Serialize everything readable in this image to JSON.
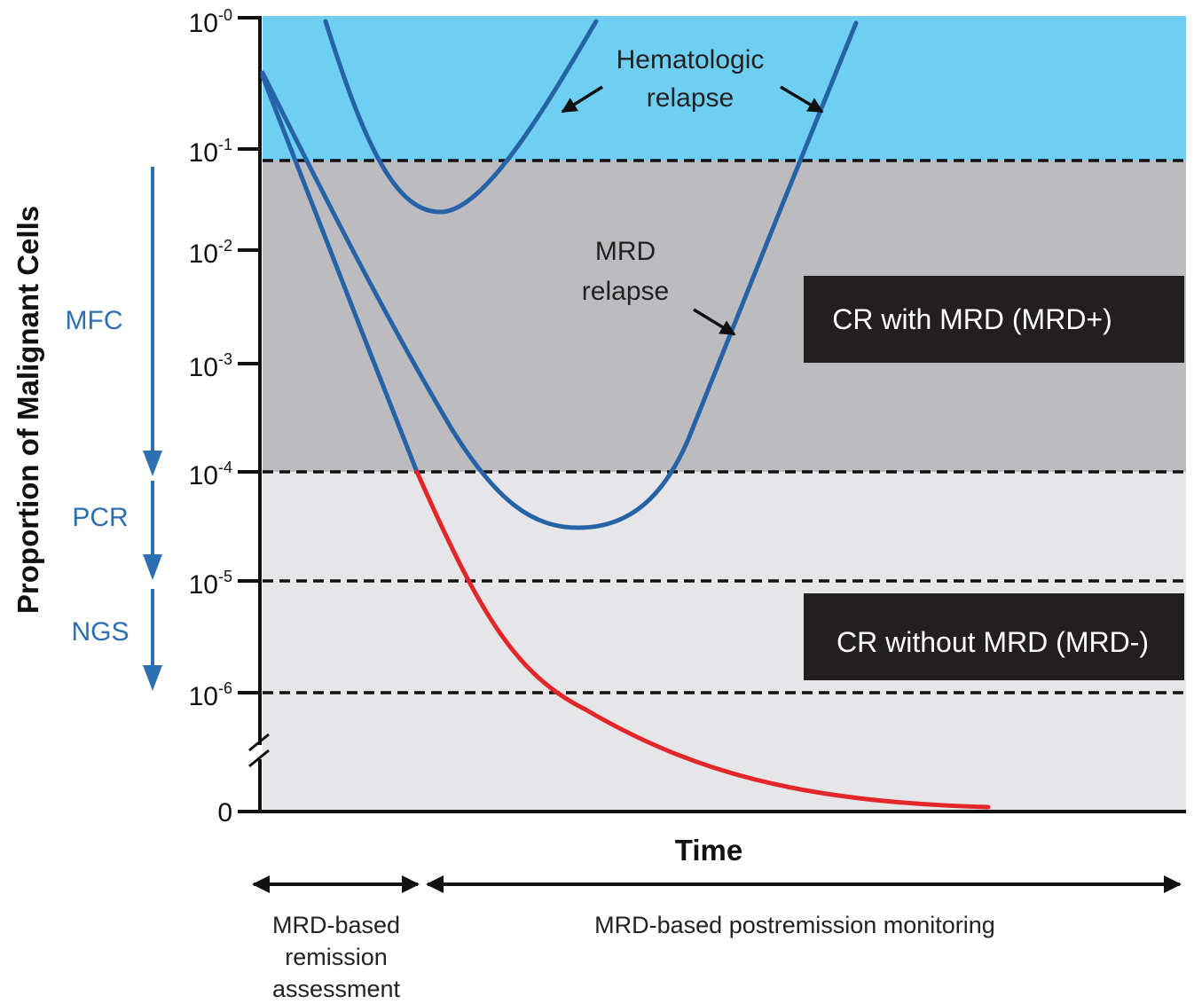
{
  "y_axis": {
    "title": "Proportion of Malignant Cells",
    "ticks": [
      {
        "base": "10",
        "exp": "-0"
      },
      {
        "base": "10",
        "exp": "-1"
      },
      {
        "base": "10",
        "exp": "-2"
      },
      {
        "base": "10",
        "exp": "-3"
      },
      {
        "base": "10",
        "exp": "-4"
      },
      {
        "base": "10",
        "exp": "-5"
      },
      {
        "base": "10",
        "exp": "-6"
      }
    ],
    "zero_label": "0"
  },
  "x_axis": {
    "title": "Time"
  },
  "methods": [
    {
      "label": "MFC"
    },
    {
      "label": "PCR"
    },
    {
      "label": "NGS"
    }
  ],
  "annotations": {
    "hematologic": [
      "Hematologic",
      "relapse"
    ],
    "mrd": [
      "MRD",
      "relapse"
    ]
  },
  "boxes": {
    "mrd_positive": "CR with MRD (MRD+)",
    "mrd_negative": "CR without  MRD (MRD-)"
  },
  "phases": {
    "remission": [
      "MRD-based",
      "remission",
      "assessment"
    ],
    "monitoring": "MRD-based postremission monitoring"
  },
  "colors": {
    "relapse_zone": "#6ecff2",
    "mrd_positive_zone": "#bcbcc0",
    "mrd_negative_zone": "#e6e6e8",
    "curve_blue": "#2563a6",
    "curve_red": "#e3262a",
    "method_arrow": "#2c6fb2",
    "box_fill": "#231f20"
  }
}
